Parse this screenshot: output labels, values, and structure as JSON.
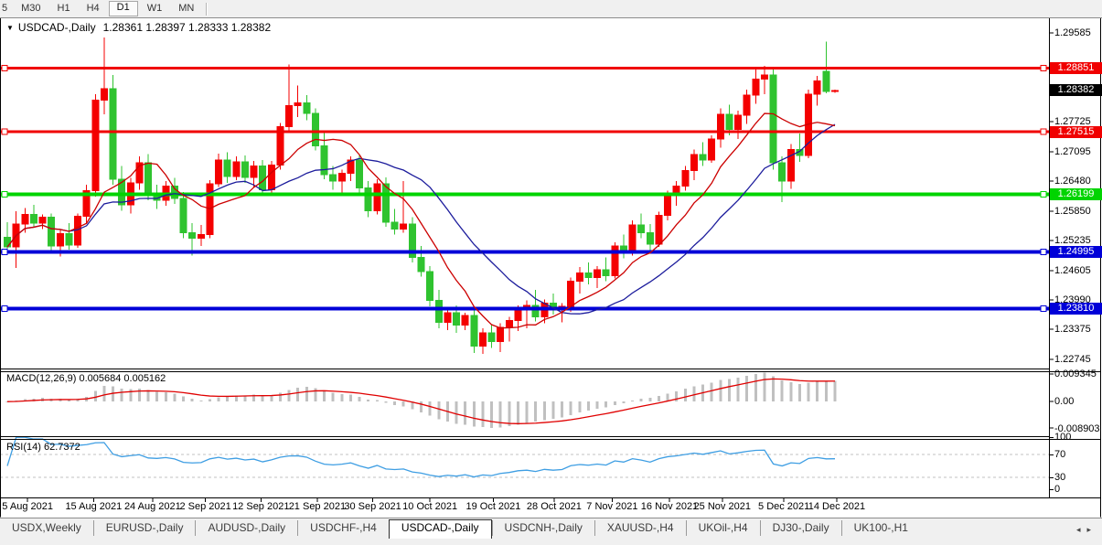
{
  "toolbar": {
    "timeframes": [
      {
        "label": "5",
        "active": false,
        "partial": true
      },
      {
        "label": "M30",
        "active": false
      },
      {
        "label": "H1",
        "active": false
      },
      {
        "label": "H4",
        "active": false
      },
      {
        "label": "D1",
        "active": true
      },
      {
        "label": "W1",
        "active": false
      },
      {
        "label": "MN",
        "active": false
      }
    ]
  },
  "chart": {
    "title": {
      "arrow": "▼",
      "symbol": "USDCAD-,Daily",
      "ohlc": "1.28361 1.28397 1.28333 1.28382"
    }
  },
  "chart_data": {
    "type": "candlestick",
    "symbol": "USDCAD-",
    "timeframe": "Daily",
    "current_bar": {
      "open": "1.28361",
      "high": "1.28397",
      "low": "1.28333",
      "close": "1.28382"
    },
    "y_axis": {
      "price_top": 1.29585,
      "price_bottom": 1.22745,
      "ticks": [
        {
          "label": "1.29585",
          "price": 1.29585
        },
        {
          "label": "1.27725",
          "price": 1.27725
        },
        {
          "label": "1.27095",
          "price": 1.27095
        },
        {
          "label": "1.26480",
          "price": 1.2648
        },
        {
          "label": "1.25850",
          "price": 1.2585
        },
        {
          "label": "1.25235",
          "price": 1.25235
        },
        {
          "label": "1.24605",
          "price": 1.24605
        },
        {
          "label": "1.23990",
          "price": 1.2399
        },
        {
          "label": "1.23375",
          "price": 1.23375
        },
        {
          "label": "1.22745",
          "price": 1.22745
        }
      ]
    },
    "current_price_badge": {
      "label": "1.28382",
      "price": 1.28382,
      "bg": "#000000",
      "text": "#ffffff"
    },
    "hlines": [
      {
        "label": "1.28851",
        "price": 1.28851,
        "color": "#f00000",
        "width": 3
      },
      {
        "label": "1.27515",
        "price": 1.27515,
        "color": "#f00000",
        "width": 3
      },
      {
        "label": "1.26199",
        "price": 1.26199,
        "color": "#00d400",
        "width": 4
      },
      {
        "label": "1.24995",
        "price": 1.24995,
        "color": "#0000d8",
        "width": 4
      },
      {
        "label": "1.23810",
        "price": 1.2381,
        "color": "#0000d8",
        "width": 4
      }
    ],
    "style": {
      "bull_color": "#f40000",
      "bear_color": "#2fc32f",
      "ma_fast_color": "#cc0000",
      "ma_slow_color": "#1c1c9c",
      "macd_bar_color": "#c0c0c0",
      "macd_signal_color": "#e00000",
      "rsi_line_color": "#3e9ee3",
      "rsi_level_color": "#c0c0c0"
    },
    "moving_averages": [
      {
        "period": 8,
        "color": "#cc0000"
      },
      {
        "period": 18,
        "color": "#1c1c9c"
      }
    ],
    "macd": {
      "label": "MACD(12,26,9) 0.005684 0.005162",
      "fast": 12,
      "slow": 26,
      "signal": 9,
      "main_value": "0.005684",
      "signal_value": "0.005162",
      "axis_labels": {
        "top": "0.009345",
        "zero": "0.00",
        "bottom": "-0.008903"
      },
      "top_val": 0.009345,
      "bottom_val": -0.008903
    },
    "rsi": {
      "label": "RSI(14) 62.7372",
      "period": 14,
      "value": "62.7372",
      "axis_labels": [
        "100",
        "70",
        "30",
        "0"
      ],
      "levels": [
        70,
        30
      ]
    },
    "x_labels": [
      {
        "text": "5 Aug 2021",
        "i": 2.3
      },
      {
        "text": "15 Aug 2021",
        "i": 9.8
      },
      {
        "text": "24 Aug 2021",
        "i": 16.5
      },
      {
        "text": "2 Sep 2021",
        "i": 22.5
      },
      {
        "text": "12 Sep 2021",
        "i": 28.8
      },
      {
        "text": "21 Sep 2021",
        "i": 35.2
      },
      {
        "text": "30 Sep 2021",
        "i": 41.5
      },
      {
        "text": "10 Oct 2021",
        "i": 48.0
      },
      {
        "text": "19 Oct 2021",
        "i": 55.2
      },
      {
        "text": "28 Oct 2021",
        "i": 62.1
      },
      {
        "text": "7 Nov 2021",
        "i": 68.7
      },
      {
        "text": "16 Nov 2021",
        "i": 75.2
      },
      {
        "text": "25 Nov 2021",
        "i": 81.2
      },
      {
        "text": "5 Dec 2021",
        "i": 88.2
      },
      {
        "text": "14 Dec 2021",
        "i": 94.2
      }
    ],
    "candles": [
      [
        1.253,
        1.2562,
        1.2498,
        1.251
      ],
      [
        1.251,
        1.2585,
        1.2466,
        1.2558
      ],
      [
        1.2558,
        1.2592,
        1.254,
        1.2578
      ],
      [
        1.2578,
        1.2598,
        1.2552,
        1.256
      ],
      [
        1.256,
        1.2578,
        1.2548,
        1.2572
      ],
      [
        1.2572,
        1.258,
        1.25,
        1.2512
      ],
      [
        1.2512,
        1.2546,
        1.249,
        1.2538
      ],
      [
        1.2538,
        1.256,
        1.2504,
        1.2514
      ],
      [
        1.2514,
        1.258,
        1.2508,
        1.2574
      ],
      [
        1.2574,
        1.264,
        1.256,
        1.2628
      ],
      [
        1.2628,
        1.283,
        1.2616,
        1.2818
      ],
      [
        1.2818,
        1.2949,
        1.2788,
        1.2842
      ],
      [
        1.2842,
        1.287,
        1.264,
        1.2652
      ],
      [
        1.2652,
        1.268,
        1.2586,
        1.2598
      ],
      [
        1.2598,
        1.2655,
        1.258,
        1.2644
      ],
      [
        1.2644,
        1.27,
        1.263,
        1.2686
      ],
      [
        1.2686,
        1.2705,
        1.2608,
        1.2618
      ],
      [
        1.2618,
        1.264,
        1.259,
        1.2608
      ],
      [
        1.2608,
        1.2648,
        1.2596,
        1.2638
      ],
      [
        1.2638,
        1.2655,
        1.26,
        1.2612
      ],
      [
        1.2612,
        1.2625,
        1.2528,
        1.254
      ],
      [
        1.254,
        1.256,
        1.2492,
        1.2528
      ],
      [
        1.2528,
        1.2556,
        1.2512,
        1.2536
      ],
      [
        1.2536,
        1.265,
        1.2528,
        1.2642
      ],
      [
        1.2642,
        1.2706,
        1.2636,
        1.2692
      ],
      [
        1.2692,
        1.2708,
        1.2644,
        1.2658
      ],
      [
        1.2658,
        1.27,
        1.265,
        1.2688
      ],
      [
        1.2688,
        1.2702,
        1.2644,
        1.2656
      ],
      [
        1.2656,
        1.269,
        1.2636,
        1.268
      ],
      [
        1.268,
        1.2692,
        1.2618,
        1.263
      ],
      [
        1.263,
        1.269,
        1.2622,
        1.2682
      ],
      [
        1.2682,
        1.277,
        1.2672,
        1.2762
      ],
      [
        1.2762,
        1.2892,
        1.275,
        1.2806
      ],
      [
        1.2806,
        1.2848,
        1.2782,
        1.2812
      ],
      [
        1.2812,
        1.2828,
        1.2776,
        1.279
      ],
      [
        1.279,
        1.28,
        1.2712,
        1.2722
      ],
      [
        1.2722,
        1.275,
        1.2652,
        1.2662
      ],
      [
        1.2662,
        1.268,
        1.263,
        1.2648
      ],
      [
        1.2648,
        1.2672,
        1.2622,
        1.2664
      ],
      [
        1.2664,
        1.27,
        1.2648,
        1.2692
      ],
      [
        1.2692,
        1.2702,
        1.2622,
        1.2634
      ],
      [
        1.2634,
        1.2648,
        1.2572,
        1.2586
      ],
      [
        1.2586,
        1.2652,
        1.2578,
        1.2642
      ],
      [
        1.2642,
        1.2656,
        1.2552,
        1.2562
      ],
      [
        1.2562,
        1.259,
        1.2536,
        1.2548
      ],
      [
        1.2548,
        1.2648,
        1.254,
        1.2558
      ],
      [
        1.2558,
        1.2572,
        1.2478,
        1.2488
      ],
      [
        1.2488,
        1.2512,
        1.2448,
        1.2458
      ],
      [
        1.2458,
        1.247,
        1.2386,
        1.2398
      ],
      [
        1.2398,
        1.242,
        1.234,
        1.2352
      ],
      [
        1.2352,
        1.238,
        1.2336,
        1.2372
      ],
      [
        1.2372,
        1.2388,
        1.233,
        1.2346
      ],
      [
        1.2346,
        1.2372,
        1.2336,
        1.2366
      ],
      [
        1.2366,
        1.2378,
        1.2288,
        1.2302
      ],
      [
        1.2302,
        1.234,
        1.2286,
        1.233
      ],
      [
        1.233,
        1.2346,
        1.2298,
        1.2312
      ],
      [
        1.2312,
        1.235,
        1.229,
        1.2342
      ],
      [
        1.2342,
        1.2364,
        1.2312,
        1.2356
      ],
      [
        1.2356,
        1.2388,
        1.2334,
        1.238
      ],
      [
        1.238,
        1.2398,
        1.234,
        1.2388
      ],
      [
        1.2388,
        1.242,
        1.2354,
        1.2364
      ],
      [
        1.2364,
        1.24,
        1.235,
        1.2392
      ],
      [
        1.2392,
        1.2412,
        1.2368,
        1.2378
      ],
      [
        1.2378,
        1.2392,
        1.2352,
        1.2386
      ],
      [
        1.2386,
        1.2446,
        1.2374,
        1.2438
      ],
      [
        1.2438,
        1.2468,
        1.2412,
        1.2456
      ],
      [
        1.2456,
        1.2478,
        1.2432,
        1.2446
      ],
      [
        1.2446,
        1.247,
        1.2424,
        1.2462
      ],
      [
        1.2462,
        1.2488,
        1.2438,
        1.245
      ],
      [
        1.245,
        1.252,
        1.2444,
        1.2512
      ],
      [
        1.2512,
        1.2536,
        1.2486,
        1.2498
      ],
      [
        1.2498,
        1.2566,
        1.2492,
        1.2556
      ],
      [
        1.2556,
        1.258,
        1.2528,
        1.254
      ],
      [
        1.254,
        1.2558,
        1.2502,
        1.2516
      ],
      [
        1.2516,
        1.2584,
        1.251,
        1.2576
      ],
      [
        1.2576,
        1.2628,
        1.2566,
        1.2618
      ],
      [
        1.2618,
        1.2648,
        1.2596,
        1.2638
      ],
      [
        1.2638,
        1.268,
        1.2628,
        1.267
      ],
      [
        1.267,
        1.2714,
        1.265,
        1.2704
      ],
      [
        1.2704,
        1.273,
        1.268,
        1.2692
      ],
      [
        1.2692,
        1.2744,
        1.2686,
        1.2736
      ],
      [
        1.2736,
        1.28,
        1.2718,
        1.2788
      ],
      [
        1.2788,
        1.2808,
        1.2744,
        1.2756
      ],
      [
        1.2756,
        1.2796,
        1.2736,
        1.2786
      ],
      [
        1.2786,
        1.284,
        1.2768,
        1.2828
      ],
      [
        1.2828,
        1.2886,
        1.281,
        1.2862
      ],
      [
        1.2862,
        1.289,
        1.283,
        1.287
      ],
      [
        1.287,
        1.2884,
        1.2672,
        1.2686
      ],
      [
        1.2686,
        1.27,
        1.2604,
        1.2648
      ],
      [
        1.2648,
        1.2726,
        1.2632,
        1.2714
      ],
      [
        1.2714,
        1.2748,
        1.2688,
        1.2702
      ],
      [
        1.2702,
        1.284,
        1.2696,
        1.283
      ],
      [
        1.283,
        1.2868,
        1.2806,
        1.2858
      ],
      [
        1.2878,
        1.294,
        1.2832,
        1.2836
      ],
      [
        1.28361,
        1.28397,
        1.28333,
        1.28382
      ]
    ]
  },
  "tabs": {
    "active": "USDCAD-,Daily",
    "items": [
      "USDX,Weekly",
      "EURUSD-,Daily",
      "AUDUSD-,Daily",
      "USDCHF-,H4",
      "USDCAD-,Daily",
      "USDCNH-,Daily",
      "XAUUSD-,H4",
      "UKOil-,H4",
      "DJ30-,Daily",
      "UK100-,H1"
    ],
    "scroll_left": "◂",
    "scroll_right": "▸"
  }
}
